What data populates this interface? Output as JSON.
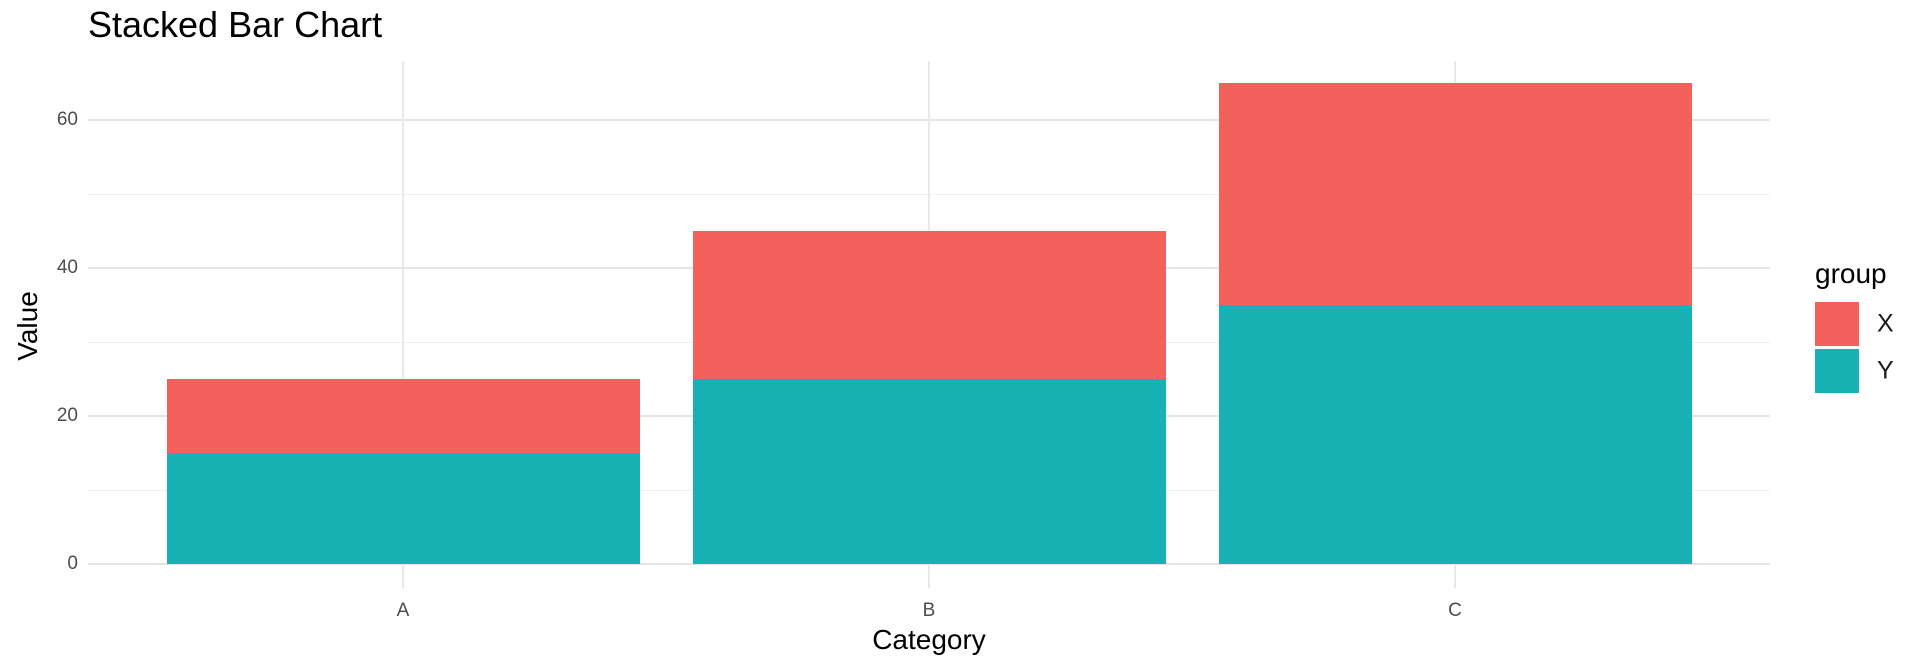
{
  "title": "Stacked Bar Chart",
  "chart_data": {
    "type": "bar",
    "stacked": true,
    "title": "Stacked Bar Chart",
    "xlabel": "Category",
    "ylabel": "Value",
    "legend_title": "group",
    "legend_position": "right",
    "categories": [
      "A",
      "B",
      "C"
    ],
    "series": [
      {
        "name": "X",
        "color": "#f4605c",
        "values": [
          10,
          20,
          30
        ]
      },
      {
        "name": "Y",
        "color": "#19b2b4",
        "values": [
          15,
          25,
          35
        ]
      }
    ],
    "stack_order_bottom_to_top": [
      "Y",
      "X"
    ],
    "y_ticks": [
      0,
      20,
      40,
      60
    ],
    "y_minor_gridlines": [
      10,
      30,
      50
    ],
    "ylim": [
      -3.25,
      68.25
    ],
    "grid": true
  },
  "colors": {
    "background": "#ffffff",
    "grid_major": "#e4e4e4",
    "grid_minor": "#f0f0f0",
    "tick_label": "#4d4d4d",
    "text": "#000000"
  }
}
